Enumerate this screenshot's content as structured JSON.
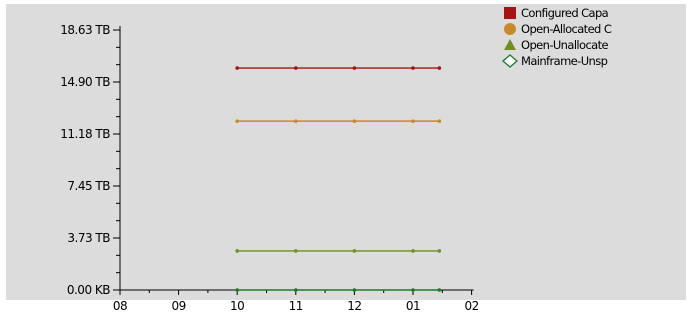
{
  "chart_data": {
    "type": "line",
    "x_categories": [
      "08",
      "09",
      "10",
      "11",
      "12",
      "01",
      "02"
    ],
    "y_ticks": [
      "0.00 KB",
      "3.73 TB",
      "7.45 TB",
      "11.18 TB",
      "14.90 TB",
      "18.63 TB"
    ],
    "ylim": [
      0,
      18.63
    ],
    "y_unit": "TB",
    "series": [
      {
        "name": "Configured Capa",
        "color": "#a31515",
        "marker": "square",
        "x": [
          10,
          11,
          12,
          13,
          13.45
        ],
        "values": [
          15.9,
          15.9,
          15.9,
          15.9,
          15.9
        ]
      },
      {
        "name": "Open-Allocated C",
        "color": "#c8882c",
        "marker": "circle",
        "x": [
          10,
          11,
          12,
          13,
          13.45
        ],
        "values": [
          12.1,
          12.1,
          12.1,
          12.1,
          12.1
        ]
      },
      {
        "name": "Open-Unallocate",
        "color": "#6f8f1e",
        "marker": "triangle",
        "x": [
          10,
          11,
          12,
          13,
          13.45
        ],
        "values": [
          2.8,
          2.8,
          2.8,
          2.8,
          2.8
        ]
      },
      {
        "name": "Mainframe-Unsp",
        "color": "#1a7a2a",
        "marker": "diamond",
        "x": [
          10,
          11,
          12,
          13,
          13.45
        ],
        "values": [
          0,
          0,
          0,
          0,
          0
        ]
      }
    ],
    "legend_position": "top-right",
    "grid": false
  }
}
